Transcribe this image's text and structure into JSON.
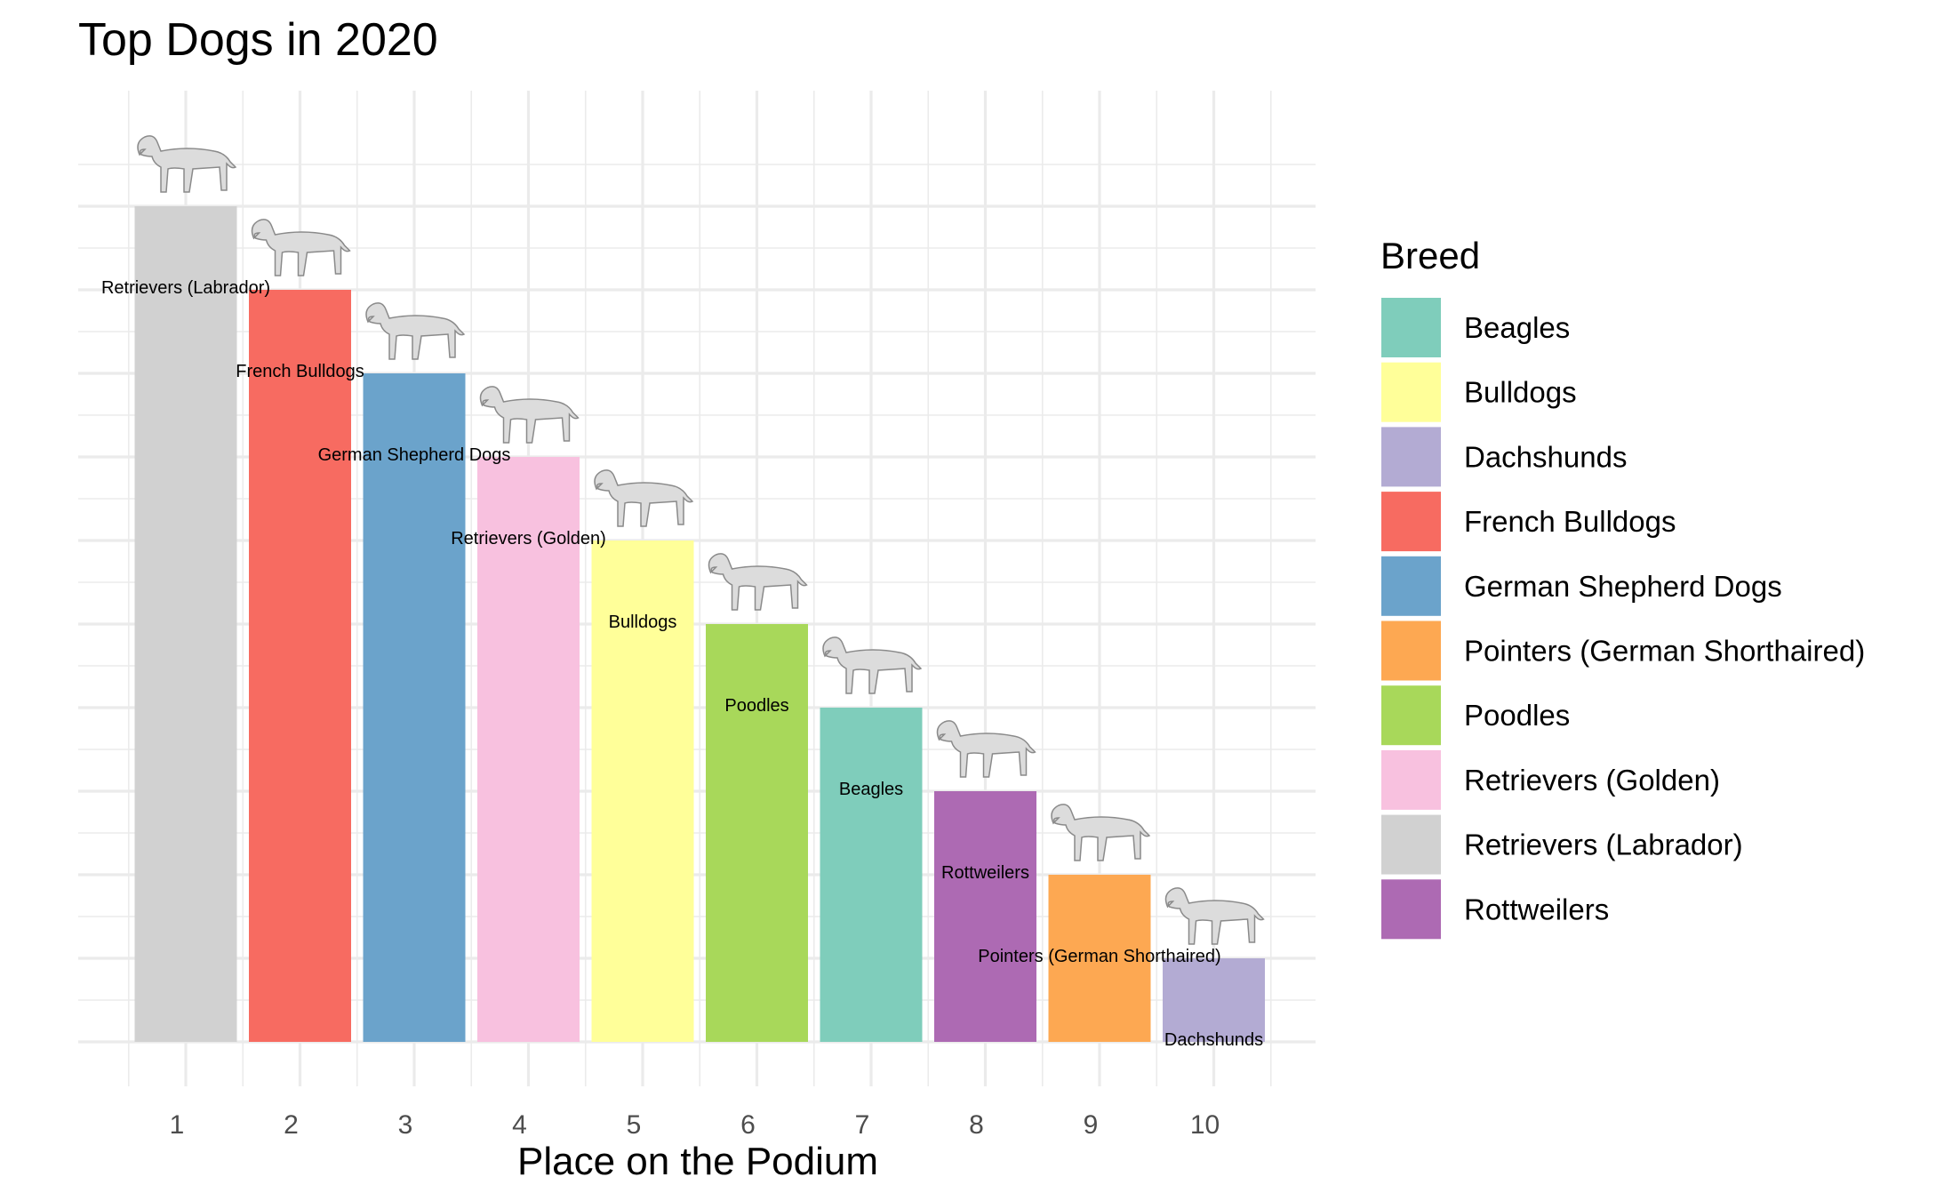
{
  "chart_data": {
    "type": "bar",
    "title": "Top Dogs in 2020",
    "xlabel": "Place on the Podium",
    "ylabel": "",
    "categories": [
      "1",
      "2",
      "3",
      "4",
      "5",
      "6",
      "7",
      "8",
      "9",
      "10"
    ],
    "breeds": [
      "Retrievers (Labrador)",
      "French Bulldogs",
      "German Shepherd Dogs",
      "Retrievers (Golden)",
      "Bulldogs",
      "Poodles",
      "Beagles",
      "Rottweilers",
      "Pointers (German Shorthaired)",
      "Dachshunds"
    ],
    "values": [
      10,
      9,
      8,
      7,
      6,
      5,
      4,
      3,
      2,
      1
    ],
    "ylim": [
      0,
      10.5
    ],
    "show_y_tick_labels": false,
    "grid": true,
    "legend": {
      "title": "Breed",
      "placement": "right",
      "entries": [
        {
          "label": "Beagles",
          "color": "#7FCDBB"
        },
        {
          "label": "Bulldogs",
          "color": "#FFFF99"
        },
        {
          "label": "Dachshunds",
          "color": "#B3ABD3"
        },
        {
          "label": "French Bulldogs",
          "color": "#F76B61"
        },
        {
          "label": "German Shepherd Dogs",
          "color": "#6BA3CB"
        },
        {
          "label": "Pointers (German Shorthaired)",
          "color": "#FDA852"
        },
        {
          "label": "Poodles",
          "color": "#A8D85A"
        },
        {
          "label": "Retrievers (Golden)",
          "color": "#F8C1DF"
        },
        {
          "label": "Retrievers (Labrador)",
          "color": "#D1D1D1"
        },
        {
          "label": "Rottweilers",
          "color": "#AD6AB3"
        }
      ]
    },
    "images": "dog illustration above each bar"
  }
}
